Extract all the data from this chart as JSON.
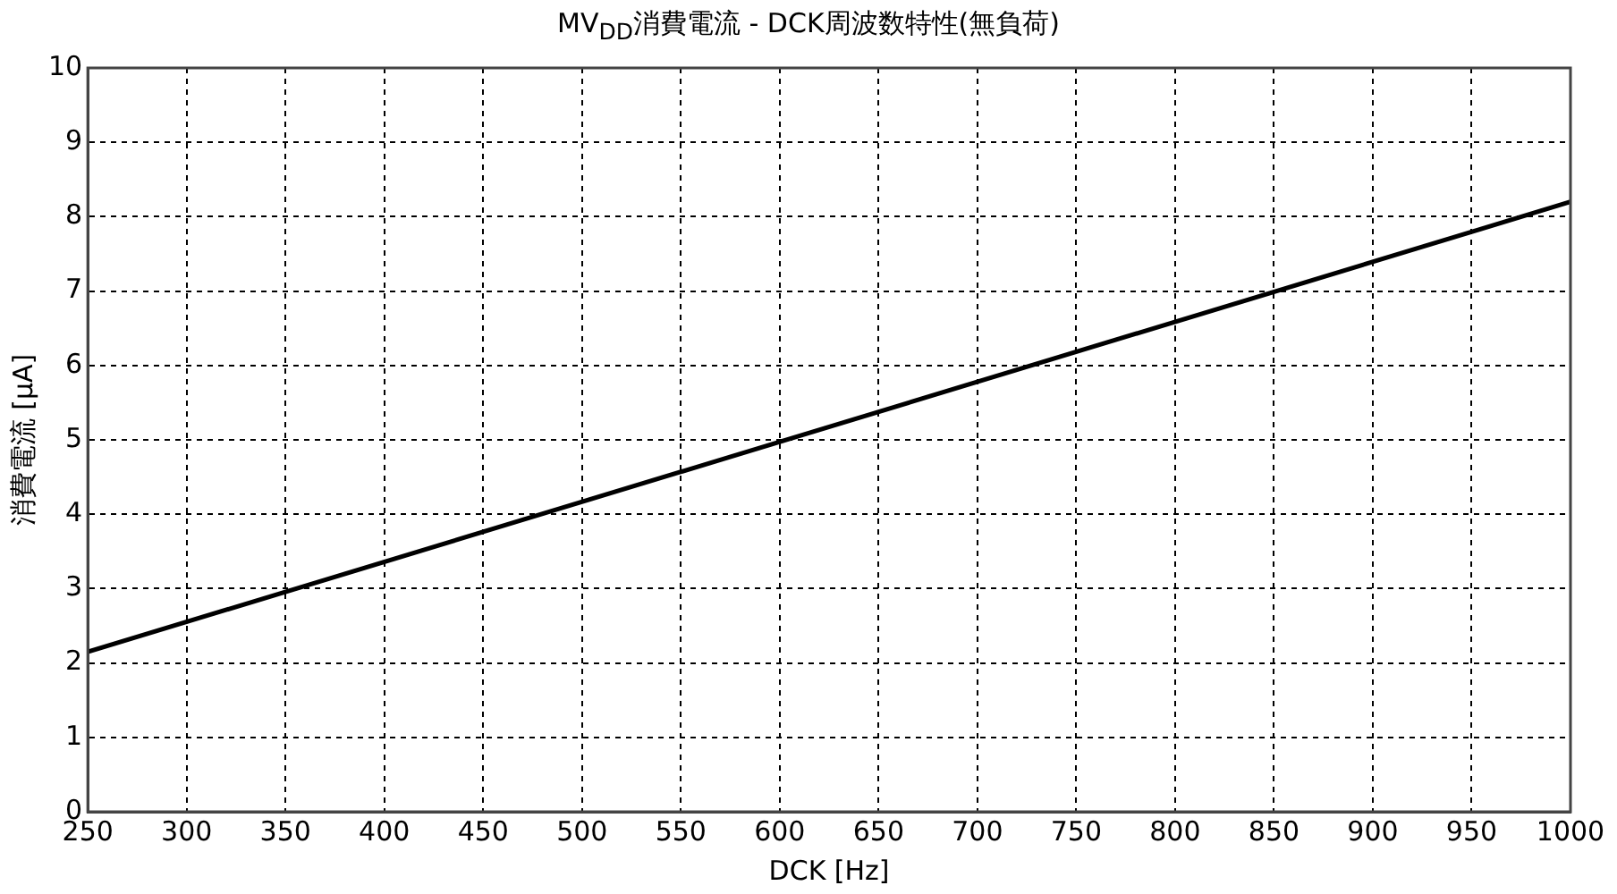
{
  "chart_data": {
    "type": "line",
    "title": "MV$_{DD}$消費電流 - DCK周波数特性(無負荷)",
    "xlabel": "DCK [Hz]",
    "ylabel": "消費電流 [µA]",
    "series": [
      {
        "color": "#000000",
        "x": [
          250,
          1000
        ],
        "values": [
          2.15,
          8.2
        ]
      }
    ],
    "xlim": [
      250,
      1000
    ],
    "xticks": [
      250,
      300,
      350,
      400,
      450,
      500,
      550,
      600,
      650,
      700,
      750,
      800,
      850,
      900,
      950,
      1000
    ],
    "ylim": [
      0,
      10
    ],
    "yticks": [
      0,
      1,
      2,
      3,
      4,
      5,
      6,
      7,
      8,
      9,
      10
    ],
    "grid": true,
    "legend": false,
    "marker": "none",
    "line_style": "solid"
  }
}
